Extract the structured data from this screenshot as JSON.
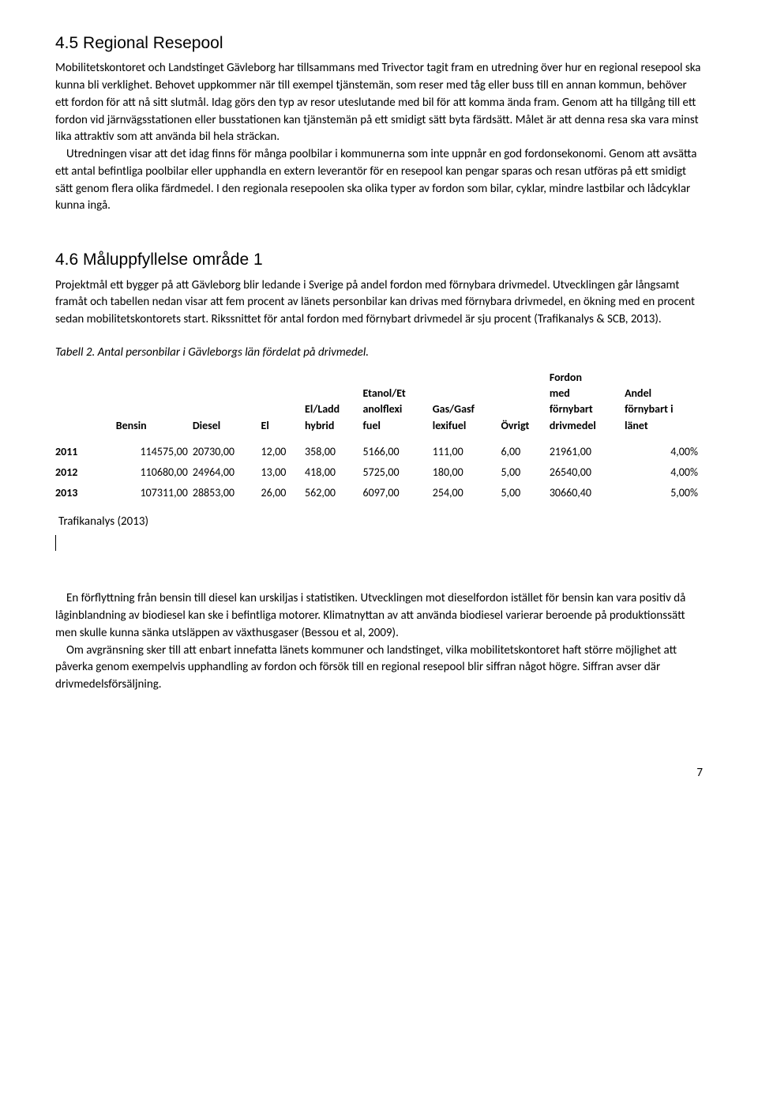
{
  "section1": {
    "heading": "4.5 Regional Resepool",
    "p1": "Mobilitetskontoret och Landstinget Gävleborg har tillsammans med Trivector tagit fram en utredning över hur en regional resepool ska kunna bli verklighet. Behovet uppkommer när till exempel tjänstemän, som reser med tåg eller buss till en annan kommun, behöver ett fordon för att nå sitt slutmål. Idag görs den typ av resor uteslutande med bil för att komma ända fram. Genom att ha tillgång till ett fordon vid järnvägsstationen eller busstationen kan tjänstemän på ett smidigt sätt byta färdsätt. Målet är att denna resa ska vara minst lika attraktiv som att använda bil hela sträckan.",
    "p2": "Utredningen visar att det idag finns för många poolbilar i kommunerna som inte uppnår en god fordonsekonomi. Genom att avsätta ett antal befintliga poolbilar eller upphandla en extern leverantör för en resepool kan pengar sparas och resan utföras på ett smidigt sätt genom flera olika färdmedel. I den regionala resepoolen ska olika typer av fordon som bilar, cyklar, mindre lastbilar och lådcyklar kunna ingå."
  },
  "section2": {
    "heading": "4.6 Måluppfyllelse område 1",
    "p1": "Projektmål ett bygger på att Gävleborg blir ledande i Sverige på andel fordon med förnybara drivmedel. Utvecklingen går långsamt framåt och tabellen nedan visar att fem procent av länets personbilar kan drivas med förnybara drivmedel, en ökning med en procent sedan mobilitetskontorets start. Rikssnittet för antal fordon med förnybart drivmedel är sju procent (Trafikanalys & SCB, 2013).",
    "table_caption": "Tabell 2. Antal personbilar i Gävleborgs län fördelat på drivmedel.",
    "columns": {
      "c1": "Bensin",
      "c2": "Diesel",
      "c3": "El",
      "c4": "El/Ladd\nhybrid",
      "c5": "Etanol/Et\nanolflexi\nfuel",
      "c6": "Gas/Gasf\nlexifuel",
      "c7": "Övrigt",
      "c8": "Fordon\nmed\nförnybart\ndrivmedel",
      "c9": "Andel\nförnybart i\nlänet"
    },
    "rows": [
      {
        "year": "2011",
        "c1": "114575,00",
        "c2": "20730,00",
        "c3": "12,00",
        "c4": "358,00",
        "c5": "5166,00",
        "c6": "111,00",
        "c7": "6,00",
        "c8": "21961,00",
        "c9": "4,00%"
      },
      {
        "year": "2012",
        "c1": "110680,00",
        "c2": "24964,00",
        "c3": "13,00",
        "c4": "418,00",
        "c5": "5725,00",
        "c6": "180,00",
        "c7": "5,00",
        "c8": "26540,00",
        "c9": "4,00%"
      },
      {
        "year": "2013",
        "c1": "107311,00",
        "c2": "28853,00",
        "c3": "26,00",
        "c4": "562,00",
        "c5": "6097,00",
        "c6": "254,00",
        "c7": "5,00",
        "c8": "30660,40",
        "c9": "5,00%"
      }
    ],
    "source": "Trafikanalys (2013)",
    "p2": "En förflyttning från bensin till diesel kan urskiljas i statistiken. Utvecklingen mot dieselfordon istället för bensin kan vara positiv då låginblandning av biodiesel kan ske i befintliga motorer. Klimatnyttan av att använda biodiesel varierar beroende på produktionssätt men skulle kunna sänka utsläppen av växthusgaser (Bessou et al, 2009).",
    "p3": "Om avgränsning sker till att enbart innefatta länets kommuner och landstinget, vilka mobilitetskontoret haft större möjlighet att påverka genom exempelvis upphandling av fordon och försök till en regional resepool blir siffran något högre. Siffran avser där drivmedelsförsäljning."
  },
  "page_number": "7"
}
